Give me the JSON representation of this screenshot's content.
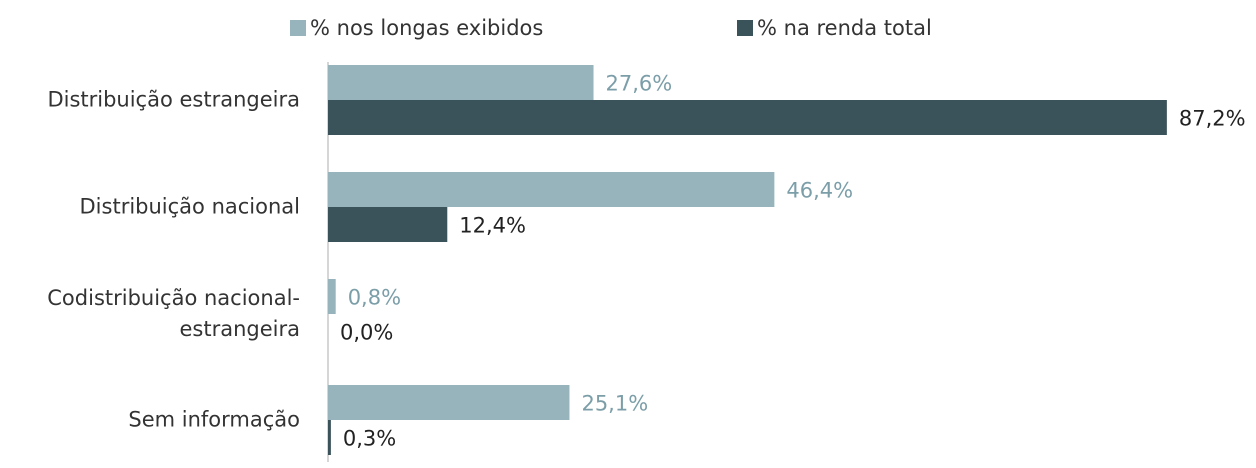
{
  "chart_data": {
    "type": "bar",
    "orientation": "horizontal",
    "categories": [
      "Distribuição estrangeira",
      "Distribuição nacional",
      "Codistribuição nacional-estrangeira",
      "Sem informação"
    ],
    "series": [
      {
        "name": "% nos longas exibidos",
        "color": "#97b3bc",
        "label_color": "#7b9ea8",
        "values": [
          27.6,
          46.4,
          0.8,
          25.1
        ],
        "value_labels": [
          "27,6%",
          "46,4%",
          "0,8%",
          "25,1%"
        ]
      },
      {
        "name": "% na renda total",
        "color": "#3a535a",
        "label_color": "#222222",
        "values": [
          87.2,
          12.4,
          0.0,
          0.3
        ],
        "value_labels": [
          "87,2%",
          "12,4%",
          "0,0%",
          "0,3%"
        ]
      }
    ],
    "legend": "top"
  }
}
